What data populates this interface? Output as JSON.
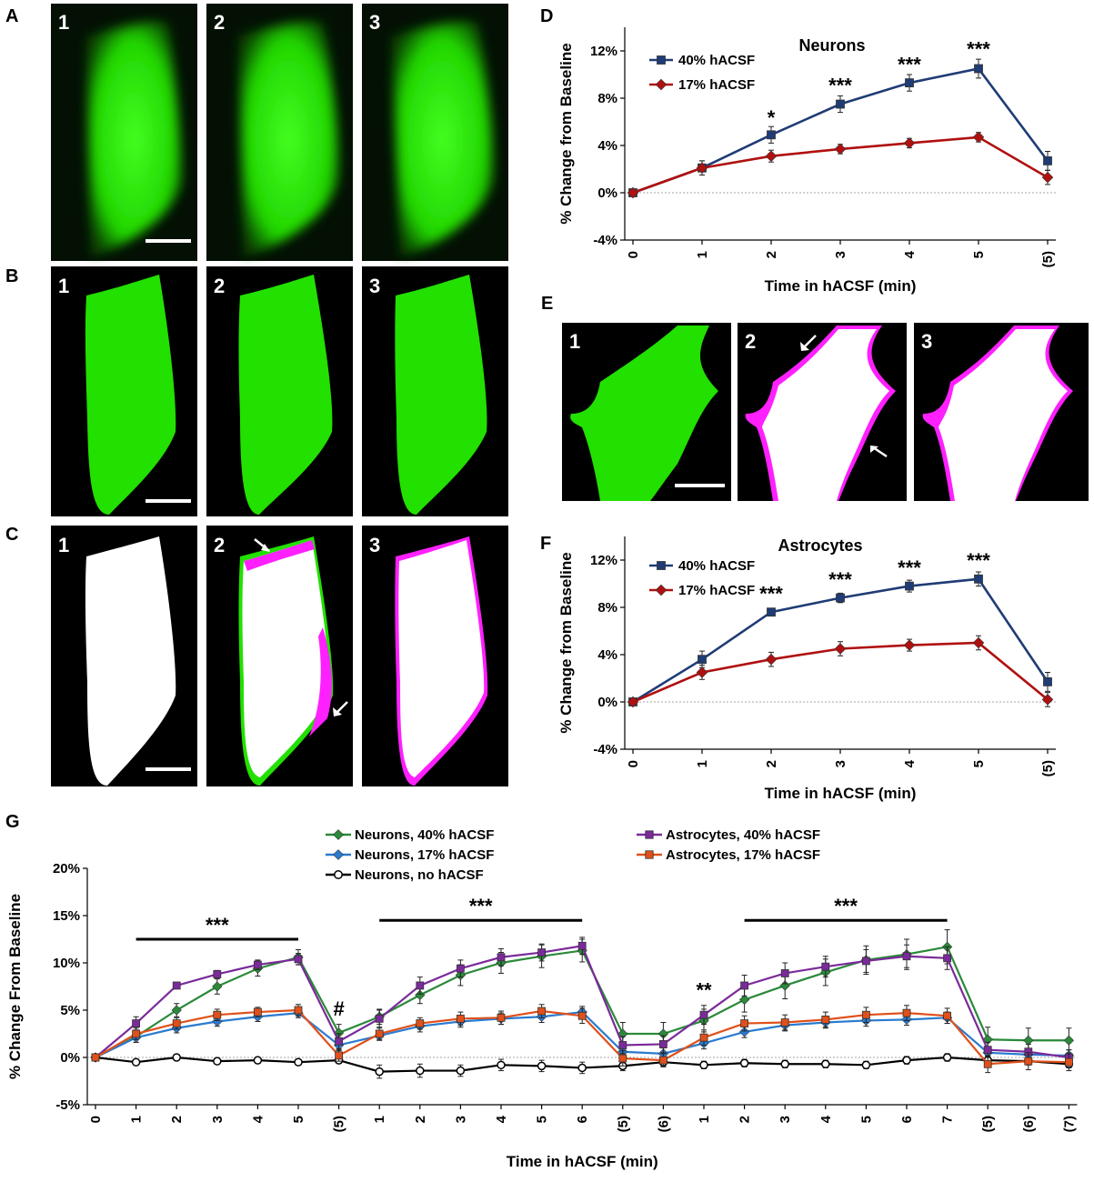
{
  "panels": {
    "A": {
      "label": "A",
      "frames": [
        "1",
        "2",
        "3"
      ]
    },
    "B": {
      "label": "B",
      "frames": [
        "1",
        "2",
        "3"
      ]
    },
    "C": {
      "label": "C",
      "frames": [
        "1",
        "2",
        "3"
      ]
    },
    "E": {
      "label": "E",
      "frames": [
        "1",
        "2",
        "3"
      ]
    }
  },
  "colors": {
    "green": "#22e000",
    "magenta": "#ff20ff",
    "navy": "#1f3c75",
    "darkred": "#b01010",
    "green_series": "#2a8a3a",
    "purple": "#7a2a9a",
    "blue": "#2a7bd0",
    "orange": "#e0501a",
    "black": "#000000"
  },
  "chart_data": [
    {
      "id": "D",
      "panel_label": "D",
      "type": "line",
      "title": "Neurons",
      "xlabel": "Time in hACSF (min)",
      "ylabel": "% Change from Baseline",
      "categories": [
        "0",
        "1",
        "2",
        "3",
        "4",
        "5",
        "(5)"
      ],
      "ylim": [
        -4,
        14
      ],
      "yticks": [
        -4,
        0,
        4,
        8,
        12
      ],
      "yticklabels": [
        "-4%",
        "0%",
        "4%",
        "8%",
        "12%"
      ],
      "legend": "top-left",
      "series": [
        {
          "name": "40% hACSF",
          "color": "#1f3c75",
          "marker": "square",
          "values": [
            0,
            2.1,
            4.9,
            7.5,
            9.3,
            10.5,
            2.7
          ],
          "errors": [
            0,
            0.6,
            0.7,
            0.7,
            0.7,
            0.8,
            0.8
          ]
        },
        {
          "name": "17% hACSF",
          "color": "#b01010",
          "marker": "diamond",
          "values": [
            0,
            2.1,
            3.1,
            3.7,
            4.2,
            4.7,
            1.3
          ],
          "errors": [
            0,
            0.6,
            0.5,
            0.4,
            0.4,
            0.4,
            0.6
          ]
        }
      ],
      "significance": [
        {
          "x": "2",
          "text": "*",
          "y": 6.4
        },
        {
          "x": "3",
          "text": "***",
          "y": 9.1
        },
        {
          "x": "4",
          "text": "***",
          "y": 10.9
        },
        {
          "x": "5",
          "text": "***",
          "y": 12.2
        }
      ]
    },
    {
      "id": "F",
      "panel_label": "F",
      "type": "line",
      "title": "Astrocytes",
      "xlabel": "Time in hACSF (min)",
      "ylabel": "% Change from Baseline",
      "categories": [
        "0",
        "1",
        "2",
        "3",
        "4",
        "5",
        "(5)"
      ],
      "ylim": [
        -4,
        14
      ],
      "yticks": [
        -4,
        0,
        4,
        8,
        12
      ],
      "yticklabels": [
        "-4%",
        "0%",
        "4%",
        "8%",
        "12%"
      ],
      "legend": "top-left",
      "series": [
        {
          "name": "40% hACSF",
          "color": "#1f3c75",
          "marker": "square",
          "values": [
            0,
            3.6,
            7.6,
            8.8,
            9.8,
            10.4,
            1.7
          ],
          "errors": [
            0,
            0.7,
            0.3,
            0.4,
            0.5,
            0.6,
            0.8
          ]
        },
        {
          "name": "17% hACSF",
          "color": "#b01010",
          "marker": "diamond",
          "values": [
            0,
            2.5,
            3.6,
            4.5,
            4.8,
            5.0,
            0.2
          ],
          "errors": [
            0,
            0.6,
            0.6,
            0.6,
            0.5,
            0.6,
            0.6
          ]
        }
      ],
      "significance": [
        {
          "x": "2",
          "text": "***",
          "y": 9.2
        },
        {
          "x": "3",
          "text": "***",
          "y": 10.4
        },
        {
          "x": "4",
          "text": "***",
          "y": 11.4
        },
        {
          "x": "5",
          "text": "***",
          "y": 12.0
        }
      ]
    },
    {
      "id": "G",
      "panel_label": "G",
      "type": "line",
      "title": "",
      "xlabel": "Time in hACSF  (min)",
      "ylabel": "% Change From Baseline",
      "categories": [
        "0",
        "1",
        "2",
        "3",
        "4",
        "5",
        "(5)",
        "1",
        "2",
        "3",
        "4",
        "5",
        "6",
        "(5)",
        "(6)",
        "1",
        "2",
        "3",
        "4",
        "5",
        "6",
        "7",
        "(5)",
        "(6)",
        "(7)"
      ],
      "ylim": [
        -5,
        20
      ],
      "yticks": [
        -5,
        0,
        5,
        10,
        15,
        20
      ],
      "yticklabels": [
        "-5%",
        "0%",
        "5%",
        "10%",
        "15%",
        "20%"
      ],
      "legend": "top",
      "series": [
        {
          "name": "Neurons, 40% hACSF",
          "color": "#2a8a3a",
          "marker": "diamond",
          "values": [
            0,
            2.2,
            5.0,
            7.5,
            9.4,
            10.6,
            2.6,
            4.3,
            6.6,
            8.7,
            10.0,
            10.7,
            11.3,
            2.5,
            2.5,
            3.9,
            6.1,
            7.6,
            9.0,
            10.3,
            10.9,
            11.7,
            1.9,
            1.8,
            1.8
          ],
          "errors": [
            0,
            0.6,
            0.7,
            0.8,
            0.8,
            0.8,
            0.9,
            0.8,
            0.9,
            1.1,
            1.1,
            1.2,
            1.2,
            1.2,
            1.2,
            1.2,
            1.3,
            1.4,
            1.4,
            1.5,
            1.6,
            1.8,
            1.3,
            1.3,
            1.3
          ]
        },
        {
          "name": "Neurons, 17% hACSF",
          "color": "#2a7bd0",
          "marker": "diamond",
          "values": [
            0,
            2.1,
            3.1,
            3.8,
            4.3,
            4.7,
            1.3,
            2.3,
            3.3,
            3.8,
            4.1,
            4.3,
            4.8,
            0.6,
            0.4,
            1.5,
            2.7,
            3.4,
            3.7,
            3.9,
            4.0,
            4.2,
            0.5,
            0.3,
            0.2
          ],
          "errors": [
            0,
            0.5,
            0.5,
            0.5,
            0.5,
            0.5,
            0.6,
            0.5,
            0.6,
            0.6,
            0.6,
            0.6,
            0.6,
            0.6,
            0.6,
            0.6,
            0.6,
            0.6,
            0.6,
            0.6,
            0.6,
            0.6,
            0.6,
            0.6,
            0.6
          ]
        },
        {
          "name": "Neurons, no hACSF",
          "color": "#000000",
          "marker": "circle",
          "values": [
            0,
            -0.5,
            0,
            -0.4,
            -0.3,
            -0.5,
            -0.3,
            -1.5,
            -1.4,
            -1.4,
            -0.8,
            -0.9,
            -1.1,
            -0.9,
            -0.5,
            -0.8,
            -0.6,
            -0.7,
            -0.7,
            -0.8,
            -0.3,
            0,
            -0.3,
            -0.4,
            -0.7
          ],
          "errors": [
            0,
            0.3,
            0.2,
            0.3,
            0.3,
            0.3,
            0.3,
            0.7,
            0.7,
            0.6,
            0.6,
            0.6,
            0.6,
            0.5,
            0.4,
            0.4,
            0.4,
            0.4,
            0.4,
            0.4,
            0.4,
            0.4,
            0.4,
            0.4,
            0.4
          ]
        },
        {
          "name": "Astrocytes, 40% hACSF",
          "color": "#7a2a9a",
          "marker": "square",
          "values": [
            0,
            3.6,
            7.6,
            8.8,
            9.8,
            10.4,
            1.7,
            4.1,
            7.6,
            9.4,
            10.6,
            11.1,
            11.8,
            1.3,
            1.4,
            4.5,
            7.6,
            8.9,
            9.6,
            10.2,
            10.7,
            10.5,
            0.8,
            0.6,
            0
          ],
          "errors": [
            0,
            0.7,
            0.3,
            0.4,
            0.5,
            0.6,
            0.8,
            0.9,
            0.9,
            0.9,
            0.9,
            0.9,
            0.9,
            0.9,
            0.9,
            1.0,
            1.1,
            1.1,
            1.1,
            1.2,
            1.2,
            1.2,
            0.8,
            0.8,
            0.8
          ]
        },
        {
          "name": "Astrocytes, 17% hACSF",
          "color": "#e0501a",
          "marker": "square",
          "values": [
            0,
            2.5,
            3.6,
            4.5,
            4.8,
            5.0,
            0.2,
            2.5,
            3.6,
            4.1,
            4.2,
            4.9,
            4.4,
            -0.1,
            -0.3,
            2.1,
            3.6,
            3.7,
            4.0,
            4.5,
            4.7,
            4.4,
            -0.7,
            -0.4,
            -0.5
          ],
          "errors": [
            0,
            0.6,
            0.6,
            0.6,
            0.5,
            0.6,
            0.6,
            0.6,
            0.6,
            0.7,
            0.7,
            0.7,
            0.8,
            0.8,
            0.7,
            0.8,
            0.8,
            0.8,
            0.8,
            0.8,
            0.8,
            0.8,
            0.9,
            0.9,
            0.9
          ]
        }
      ],
      "significance_bars": [
        {
          "from": 1,
          "to": 5,
          "text": "***",
          "y": 12.5
        },
        {
          "from": 7,
          "to": 12,
          "text": "***",
          "y": 14.5
        },
        {
          "from": 16,
          "to": 21,
          "text": "***",
          "y": 14.5
        }
      ],
      "annotations": [
        {
          "x_index": 6,
          "text": "#",
          "y": 4.4
        },
        {
          "x_index": 15,
          "text": "**",
          "y": 6.4
        }
      ]
    }
  ]
}
